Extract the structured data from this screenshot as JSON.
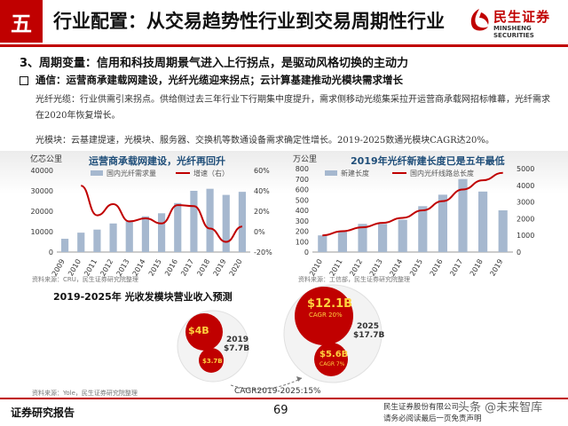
{
  "header": {
    "section_number": "五",
    "title": "行业配置：从交易趋势性行业到交易周期性行业",
    "logo_cn": "民生证券",
    "logo_en": "MINSHENG SECURITIES"
  },
  "section": {
    "heading": "3、周期变量：信用和科技周期景气进入上行拐点，是驱动风格切换的主动力",
    "subheading": "通信：运营商承建载网建设，光纤光缆迎来拐点；云计算基建推动光模块需求增长",
    "para_fiber": "光纤光缆：行业供需引来拐点。供给侧过去三年行业下行期集中度提升，需求侧移动光缆集采拉开运营商承载网招标帷幕，光纤需求在2020年恢复增长。",
    "para_module": "光模块：云基建提速，光模块、服务器、交换机等数通设备需求确定性增长。2019-2025数通光模块CAGR达20%。"
  },
  "chart_data": [
    {
      "type": "bar",
      "title": "运营商承载网建设，光纤再回升",
      "unit_left": "亿芯公里",
      "categories": [
        "2009",
        "2010",
        "2011",
        "2012",
        "2013",
        "2014",
        "2015",
        "2016",
        "2017",
        "2018",
        "2019",
        "2020"
      ],
      "series": [
        {
          "name": "国内光纤需求量",
          "type": "bar",
          "axis": "left",
          "values": [
            6500,
            9500,
            11000,
            14000,
            15500,
            17500,
            19000,
            24000,
            30000,
            31000,
            28000,
            29500
          ]
        },
        {
          "name": "增速（右）",
          "type": "line",
          "axis": "right",
          "values": [
            null,
            45,
            16,
            27,
            10,
            13,
            8,
            26,
            25,
            3,
            -10,
            5
          ]
        }
      ],
      "ylim_left": [
        0,
        40000
      ],
      "yticks_left": [
        "0",
        "10000",
        "20000",
        "30000",
        "40000"
      ],
      "ylim_right": [
        -20,
        60
      ],
      "yticks_right": [
        "-20%",
        "0%",
        "20%",
        "40%",
        "60%"
      ],
      "source": "资料来源：CRU，民生证券研究院整理",
      "colors": {
        "bar": "#a6b8cf",
        "line": "#c00000"
      }
    },
    {
      "type": "bar",
      "title": "2019年光纤新建长度已是五年最低",
      "unit_left": "万公里",
      "categories": [
        "2010",
        "2011",
        "2012",
        "2013",
        "2014",
        "2015",
        "2016",
        "2017",
        "2018",
        "2019"
      ],
      "series": [
        {
          "name": "新建长度",
          "type": "bar",
          "axis": "left",
          "values": [
            160,
            200,
            270,
            270,
            310,
            440,
            550,
            700,
            580,
            400
          ]
        },
        {
          "name": "国内光纤线路总长度",
          "type": "line",
          "axis": "right",
          "values": [
            1000,
            1250,
            1480,
            1750,
            2050,
            2500,
            3050,
            3750,
            4300,
            4750
          ]
        }
      ],
      "ylim_left": [
        0,
        800
      ],
      "yticks_left": [
        "0",
        "100",
        "200",
        "300",
        "400",
        "500",
        "600",
        "700",
        "800"
      ],
      "ylim_right": [
        0,
        5000
      ],
      "yticks_right": [
        "0",
        "1000",
        "2000",
        "3000",
        "4000",
        "5000"
      ],
      "source": "资料来源：工信部，民生证券研究院整理",
      "colors": {
        "bar": "#a6b8cf",
        "line": "#c00000"
      }
    }
  ],
  "bubble_chart": {
    "title": "2019-2025年 光收发模块营业收入预测",
    "left_year": "2019",
    "left_total": "$7.7B",
    "left_big": "$4B",
    "left_small": "$3.7B",
    "right_year": "2025",
    "right_total": "$17.7B",
    "right_big": "$12.1B",
    "right_big_cagr": "CAGR 20%",
    "right_small": "$5.6B",
    "right_small_cagr": "CAGR 7%",
    "cagr_note": "CAGR2019-2025:15%",
    "source": "资料来源：Yole，民生证券研究院整理"
  },
  "footer": {
    "left": "证券研究报告",
    "page": "69",
    "right_line1": "民生证券股份有限公司",
    "right_line2": "请务必阅读最后一页免责声明",
    "watermark": "头条 @未来智库"
  }
}
